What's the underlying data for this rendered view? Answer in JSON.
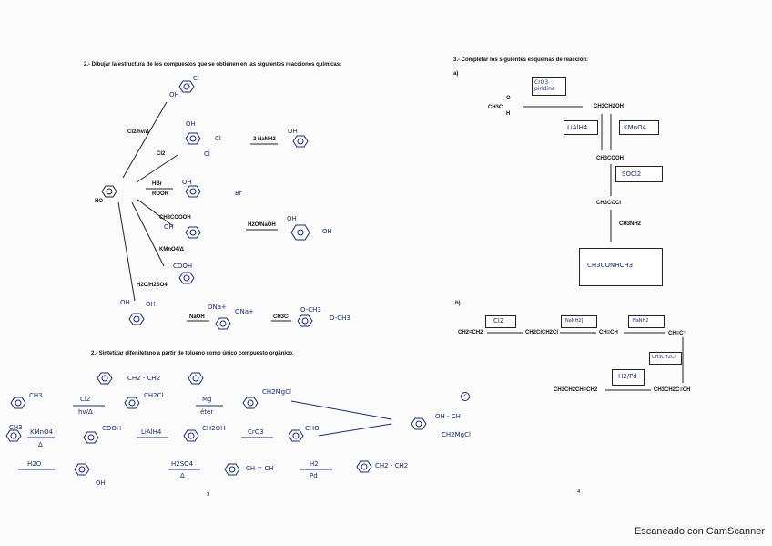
{
  "left_page": {
    "q2_title": "2.- Dibujar la estructura de los compuestos que se obtienen en las siguientes reacciones químicas:",
    "start_label": "HO",
    "reagents": [
      "Cl2/hv/Δ",
      "Cl2",
      "HBr",
      "ROOR",
      "CH3COOOH",
      "KMnO4/Δ",
      "H2O/H2SO4",
      "2 NaNH2",
      "H2O/NaOH",
      "NaOH",
      "CH3Cl"
    ],
    "answers": [
      "OH",
      "Cl",
      "OH",
      "Cl",
      "Cl",
      "OH",
      "Br",
      "OH",
      "OH",
      "OH",
      "OH",
      "COOH",
      "OH",
      "OH",
      "ONa+",
      "ONa+",
      "O-CH3",
      "O-CH3"
    ],
    "q2b_title": "2.- Sintetizar difeniletano a partir de tolueno como único compuesto orgánico.",
    "synthesis": {
      "target": "CH2 - CH2",
      "steps": [
        "CH3",
        "Cl2",
        "hv/Δ",
        "CH2Cl",
        "Mg",
        "éter",
        "CH2MgCl",
        "CH3",
        "KMnO4",
        "Δ",
        "COOH",
        "LiAlH4",
        "CH2OH",
        "CrO3",
        "CHO",
        "H2O",
        "OH",
        "H2SO4",
        "Δ",
        "CH = CH",
        "H2",
        "Pd",
        "CH2 - CH2",
        "OH - CH",
        "CH2MgCl"
      ]
    },
    "page_number": "3"
  },
  "right_page": {
    "q3_title": "3.- Completar los siguientes esquemas de reacción:",
    "part_a": {
      "label": "a)",
      "acetaldehyde": "CH3C",
      "aldehyde_o": "O",
      "aldehyde_h": "H",
      "ethanol": "CH3CH2OH",
      "acetic_acid": "CH3COOH",
      "acetyl_chloride": "CH3COCl",
      "methylamine": "CH3NH2",
      "box_cro3": "CrO3 piridina",
      "box_lialh4": "LiAlH4",
      "box_kmno4": "KMnO4",
      "box_socl2": "SOCl2",
      "box_product": "CH3CONHCH3"
    },
    "part_b": {
      "label": "b)",
      "ethene": "CH2=CH2",
      "dichloro": "CH2ClCH2Cl",
      "acetylene": "CH≡CH",
      "acetylide": "CH≡C⁻",
      "butyne": "CH3CH2C≡CH",
      "butene": "CH3CH2CH=CH2",
      "box_cl2": "Cl2",
      "box_nanh2_1": "[NaNH2]",
      "box_nanh2_2": "NaNH2",
      "box_etcl": "CH3CH2Cl",
      "box_h2pd": "H2/Pd",
      "circle_c": "c"
    },
    "page_number": "4"
  },
  "watermark": "Escaneado con CamScanner"
}
